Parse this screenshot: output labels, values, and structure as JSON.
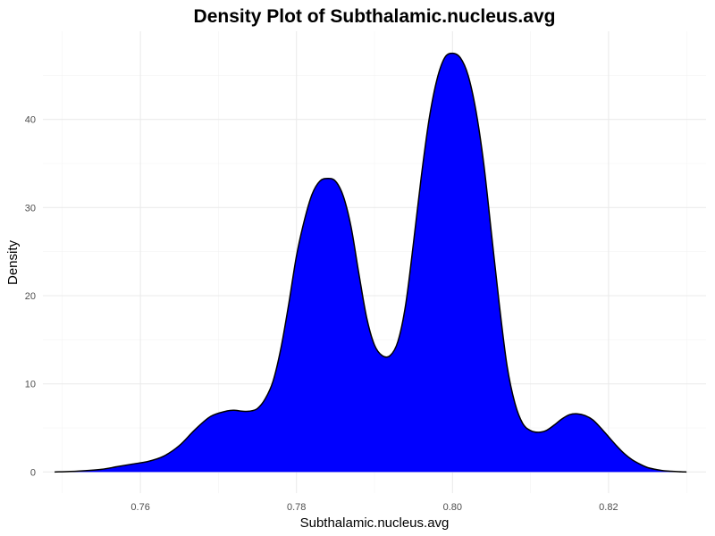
{
  "chart_data": {
    "type": "area",
    "title": "Density Plot of Subthalamic.nucleus.avg",
    "xlabel": "Subthalamic.nucleus.avg",
    "ylabel": "Density",
    "xlim": [
      0.7475,
      0.8325
    ],
    "ylim": [
      -2.4,
      50
    ],
    "x_ticks": [
      0.76,
      0.78,
      0.8,
      0.82
    ],
    "x_tick_labels": [
      "0.76",
      "0.78",
      "0.80",
      "0.82"
    ],
    "y_ticks": [
      0,
      10,
      20,
      30,
      40
    ],
    "y_tick_labels": [
      "0",
      "10",
      "20",
      "30",
      "40"
    ],
    "grid": true,
    "fill_color": "#0000ff",
    "line_color": "#000000",
    "series": [
      {
        "x": [
          0.749,
          0.752,
          0.755,
          0.757,
          0.759,
          0.761,
          0.763,
          0.765,
          0.767,
          0.769,
          0.771,
          0.772,
          0.773,
          0.774,
          0.775,
          0.776,
          0.777,
          0.778,
          0.779,
          0.78,
          0.781,
          0.782,
          0.783,
          0.784,
          0.785,
          0.786,
          0.787,
          0.788,
          0.789,
          0.79,
          0.791,
          0.792,
          0.793,
          0.794,
          0.795,
          0.796,
          0.797,
          0.798,
          0.799,
          0.8,
          0.801,
          0.802,
          0.803,
          0.804,
          0.805,
          0.806,
          0.807,
          0.808,
          0.809,
          0.81,
          0.811,
          0.812,
          0.813,
          0.814,
          0.815,
          0.816,
          0.817,
          0.818,
          0.819,
          0.82,
          0.821,
          0.822,
          0.823,
          0.824,
          0.825,
          0.826,
          0.827,
          0.828,
          0.829,
          0.83
        ],
        "y": [
          0.0,
          0.1,
          0.3,
          0.6,
          0.9,
          1.2,
          1.8,
          3.0,
          4.8,
          6.3,
          6.9,
          7.0,
          6.9,
          6.9,
          7.2,
          8.3,
          10.3,
          14.0,
          19.0,
          24.5,
          28.5,
          31.5,
          33.0,
          33.3,
          33.0,
          31.3,
          27.8,
          22.5,
          17.5,
          14.4,
          13.2,
          13.2,
          14.8,
          19.0,
          26.0,
          33.5,
          40.0,
          44.5,
          47.0,
          47.5,
          47.0,
          45.0,
          41.0,
          35.0,
          27.0,
          19.0,
          12.0,
          7.8,
          5.5,
          4.7,
          4.5,
          4.7,
          5.3,
          6.0,
          6.5,
          6.6,
          6.4,
          5.9,
          5.0,
          4.0,
          3.0,
          2.1,
          1.4,
          0.9,
          0.5,
          0.3,
          0.15,
          0.08,
          0.03,
          0.0
        ]
      }
    ]
  }
}
